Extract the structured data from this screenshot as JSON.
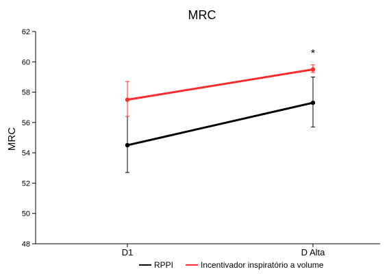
{
  "chart_data": {
    "type": "line",
    "title": "MRC",
    "xlabel": "",
    "ylabel": "MRC",
    "categories": [
      "D1",
      "D Alta"
    ],
    "ylim": [
      48,
      62
    ],
    "yticks": [
      48,
      50,
      52,
      54,
      56,
      58,
      60,
      62
    ],
    "grid": false,
    "legend_position": "bottom",
    "series": [
      {
        "name": "RPPI",
        "color": "#000000",
        "values": [
          54.5,
          57.3
        ],
        "error_low": [
          52.7,
          55.7
        ],
        "error_high": [
          56.4,
          59.0
        ]
      },
      {
        "name": "Incentivador inspiratório a volume",
        "color": "#ff2a2a",
        "values": [
          57.5,
          59.5
        ],
        "error_low": [
          56.4,
          59.3
        ],
        "error_high": [
          58.7,
          59.8
        ]
      }
    ],
    "annotations": [
      {
        "text": "*",
        "category": "D Alta",
        "y": 60.7
      }
    ]
  }
}
